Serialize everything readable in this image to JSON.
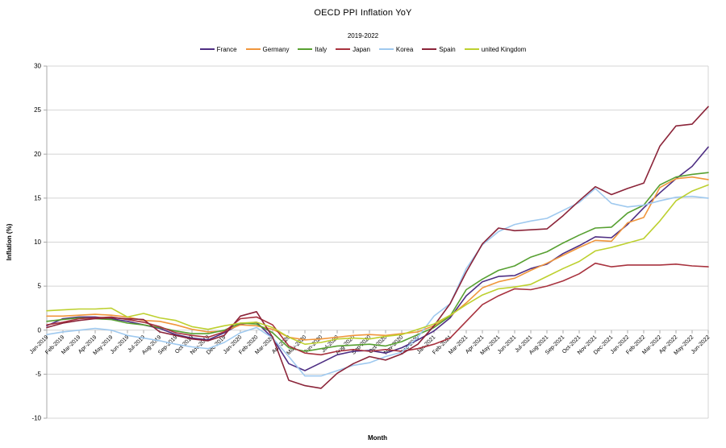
{
  "chart_data": {
    "type": "line",
    "title": "OECD PPI Inflation YoY",
    "subtitle": "2019-2022",
    "xlabel": "Month",
    "ylabel": "Inflation (%)",
    "ylim": [
      -10,
      30
    ],
    "ytick_step": 5,
    "grid": true,
    "legend_position": "top",
    "x": [
      "Jan-2019",
      "Feb-2019",
      "Mar-2019",
      "Apr-2019",
      "May-2019",
      "Jun-2019",
      "Jul-2019",
      "Aug-2019",
      "Sep-2019",
      "Oct-2019",
      "Nov-2019",
      "Dec-2019",
      "Jan-2020",
      "Feb-2020",
      "Mar-2020",
      "Apr-2020",
      "May-2020",
      "Jun-2020",
      "Jul-2020",
      "Aug-2020",
      "Sep-2020",
      "Oct-2020",
      "Nov-2020",
      "Dec-2020",
      "Jan-2021",
      "Feb-2021",
      "Mar-2021",
      "Apr-2021",
      "May-2021",
      "Jun-2021",
      "Jul-2021",
      "Aug-2021",
      "Sep-2021",
      "Oct-2021",
      "Nov-2021",
      "Dec-2021",
      "Jan-2022",
      "Feb-2022",
      "Mar-2022",
      "Apr-2022",
      "May-2022",
      "Jun-2022"
    ],
    "series": [
      {
        "name": "France",
        "color": "#4e2e83",
        "values": [
          0.5,
          1.3,
          1.5,
          1.5,
          1.3,
          1.0,
          0.6,
          0.2,
          -0.5,
          -0.9,
          -1.1,
          -0.3,
          0.7,
          0.9,
          -0.9,
          -3.8,
          -4.6,
          -3.7,
          -2.8,
          -2.4,
          -2.3,
          -2.6,
          -2.0,
          -1.1,
          -0.1,
          1.4,
          3.9,
          5.5,
          6.1,
          6.2,
          7.0,
          7.5,
          8.7,
          9.6,
          10.6,
          10.5,
          12.0,
          13.9,
          15.6,
          17.2,
          18.6,
          20.8
        ]
      },
      {
        "name": "Germany",
        "color": "#f0963c",
        "values": [
          1.6,
          1.6,
          1.7,
          1.8,
          1.7,
          1.5,
          1.1,
          1.0,
          0.6,
          0.1,
          -0.2,
          -0.1,
          0.6,
          0.5,
          0.1,
          -0.8,
          -1.1,
          -1.0,
          -0.8,
          -0.6,
          -0.5,
          -0.6,
          -0.4,
          -0.2,
          0.5,
          1.6,
          3.1,
          4.8,
          5.5,
          5.9,
          6.8,
          7.6,
          8.5,
          9.4,
          10.2,
          10.1,
          12.2,
          12.8,
          16.2,
          17.2,
          17.4,
          17.1
        ]
      },
      {
        "name": "Italy",
        "color": "#57a031",
        "values": [
          1.0,
          1.2,
          1.4,
          1.3,
          1.2,
          0.8,
          0.6,
          0.3,
          -0.1,
          -0.4,
          -0.4,
          0.0,
          0.8,
          0.7,
          -0.3,
          -2.0,
          -2.4,
          -2.1,
          -1.8,
          -1.7,
          -1.6,
          -1.8,
          -1.3,
          -0.5,
          0.3,
          1.6,
          4.6,
          5.8,
          6.8,
          7.3,
          8.3,
          8.9,
          9.9,
          10.8,
          11.6,
          11.7,
          13.3,
          14.2,
          16.5,
          17.4,
          17.7,
          17.9
        ]
      },
      {
        "name": "Japan",
        "color": "#a8323e",
        "values": [
          0.6,
          0.9,
          1.3,
          1.4,
          1.5,
          1.2,
          0.9,
          0.4,
          -0.3,
          -0.6,
          -0.8,
          -0.2,
          1.3,
          1.5,
          0.6,
          -1.8,
          -2.6,
          -2.8,
          -2.4,
          -2.2,
          -2.4,
          -2.2,
          -2.4,
          -2.1,
          -1.6,
          -0.9,
          1.0,
          2.9,
          3.9,
          4.7,
          4.6,
          5.0,
          5.6,
          6.4,
          7.6,
          7.2,
          7.4,
          7.4,
          7.4,
          7.5,
          7.3,
          7.2
        ]
      },
      {
        "name": "Korea",
        "color": "#9fc9ef",
        "values": [
          -0.5,
          -0.2,
          0.0,
          0.2,
          0.0,
          -0.6,
          -0.9,
          -1.2,
          -1.6,
          -1.9,
          -2.1,
          -1.4,
          -0.3,
          0.3,
          -0.9,
          -3.0,
          -5.2,
          -5.2,
          -4.6,
          -4.0,
          -3.7,
          -3.0,
          -2.5,
          -0.8,
          1.6,
          3.0,
          7.0,
          9.7,
          11.2,
          12.0,
          12.4,
          12.7,
          13.6,
          14.5,
          16.1,
          14.4,
          14.0,
          14.2,
          14.7,
          15.1,
          15.2,
          15.0
        ]
      },
      {
        "name": "Spain",
        "color": "#8b2439",
        "values": [
          0.3,
          0.8,
          1.1,
          1.3,
          1.4,
          1.3,
          1.2,
          -0.2,
          -0.6,
          -1.0,
          -1.2,
          -0.6,
          1.6,
          2.1,
          -0.8,
          -5.7,
          -6.3,
          -6.6,
          -4.9,
          -3.8,
          -3.0,
          -3.4,
          -2.7,
          -1.6,
          0.5,
          3.0,
          6.6,
          9.8,
          11.6,
          11.3,
          11.4,
          11.5,
          13.0,
          14.7,
          16.3,
          15.4,
          16.1,
          16.7,
          20.9,
          23.2,
          23.4,
          25.4
        ]
      },
      {
        "name": "united Kingdom",
        "color": "#bdd02f",
        "values": [
          2.2,
          2.3,
          2.4,
          2.4,
          2.5,
          1.5,
          1.9,
          1.4,
          1.1,
          0.4,
          0.1,
          0.5,
          0.8,
          0.9,
          0.3,
          -0.8,
          -1.6,
          -1.4,
          -1.0,
          -0.9,
          -1.0,
          -0.7,
          -0.5,
          0.1,
          0.7,
          1.7,
          2.9,
          4.0,
          4.7,
          4.9,
          5.2,
          6.1,
          7.0,
          7.8,
          9.0,
          9.4,
          9.9,
          10.4,
          12.4,
          14.7,
          15.8,
          16.5
        ]
      }
    ],
    "colors": {
      "gridline": "#d4d4d4",
      "axis": "#a9a9a9",
      "text": "#000000"
    }
  }
}
